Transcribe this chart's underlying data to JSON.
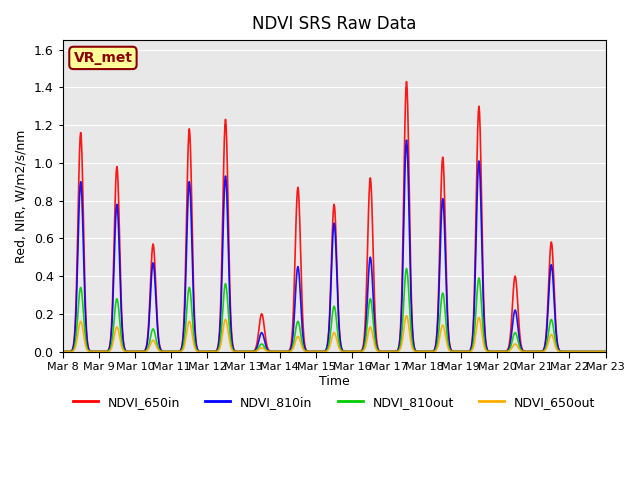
{
  "title": "NDVI SRS Raw Data",
  "ylabel": "Red, NIR, W/m2/s/nm",
  "xlabel": "Time",
  "ylim": [
    0,
    1.65
  ],
  "legend_labels": [
    "NDVI_650in",
    "NDVI_810in",
    "NDVI_810out",
    "NDVI_650out"
  ],
  "legend_colors": [
    "#ff0000",
    "#0000ff",
    "#00cc00",
    "#ffaa00"
  ],
  "annotation_text": "VR_met",
  "annotation_bg": "#ffff99",
  "annotation_border": "#8b0000",
  "bg_color": "#e8e8e8",
  "line_width": 1.2,
  "peak_days": [
    8,
    9,
    10,
    11,
    12,
    13,
    14,
    15,
    16,
    17,
    18,
    19,
    20,
    21,
    22,
    23
  ],
  "peak_values_650in": [
    1.16,
    0.98,
    0.57,
    1.18,
    1.23,
    0.2,
    0.87,
    0.78,
    0.92,
    1.43,
    1.03,
    1.3,
    0.4,
    0.58,
    0.0,
    0.0
  ],
  "peak_values_810in": [
    0.9,
    0.78,
    0.47,
    0.9,
    0.93,
    0.1,
    0.45,
    0.68,
    0.5,
    1.12,
    0.81,
    1.01,
    0.22,
    0.46,
    0.0,
    0.0
  ],
  "peak_values_810out": [
    0.34,
    0.28,
    0.12,
    0.34,
    0.36,
    0.04,
    0.16,
    0.24,
    0.28,
    0.44,
    0.31,
    0.39,
    0.1,
    0.17,
    0.0,
    0.0
  ],
  "peak_values_650out": [
    0.16,
    0.13,
    0.06,
    0.16,
    0.17,
    0.02,
    0.08,
    0.1,
    0.13,
    0.19,
    0.14,
    0.18,
    0.04,
    0.09,
    0.0,
    0.0
  ]
}
